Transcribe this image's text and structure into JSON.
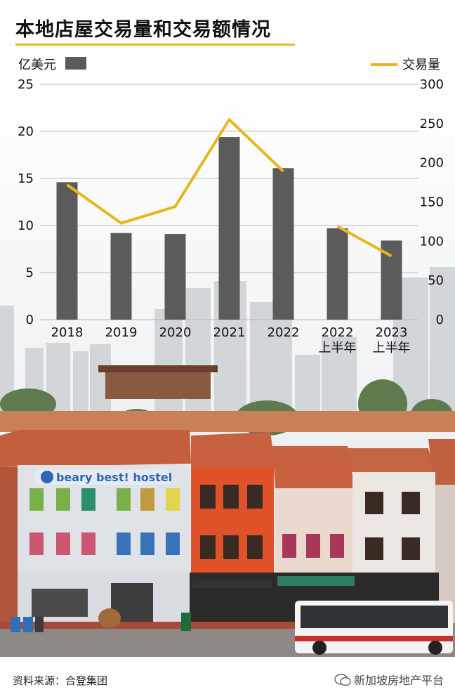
{
  "title": "本地店屋交易量和交易额情况",
  "legend": {
    "bar_label": "亿美元",
    "line_label": "交易量"
  },
  "source": "资料来源：合登集团",
  "watermark": "新加坡房地产平台",
  "colors": {
    "bar": "#5b5b5b",
    "line": "#e7b520",
    "accent": "#e8b82a",
    "text": "#111111",
    "grid": "#b8b8b8"
  },
  "chart_data": {
    "type": "bar",
    "categories": [
      "2018",
      "2019",
      "2020",
      "2021",
      "2022",
      "2022\n上半年",
      "2023\n上半年"
    ],
    "series": [
      {
        "name": "亿美元",
        "type": "bar",
        "axis": "left",
        "values": [
          14.6,
          9.2,
          9.1,
          19.4,
          16.1,
          9.7,
          8.4
        ]
      },
      {
        "name": "交易量",
        "type": "line",
        "axis": "right",
        "values": [
          172,
          123,
          144,
          255,
          189,
          119,
          81
        ]
      }
    ],
    "y_left": {
      "min": 0,
      "max": 25,
      "ticks": [
        0,
        5,
        10,
        15,
        20,
        25
      ]
    },
    "y_right": {
      "min": 0,
      "max": 300,
      "ticks": [
        0,
        50,
        100,
        150,
        200,
        250,
        300
      ]
    },
    "grid": true,
    "legend_position": "top"
  }
}
